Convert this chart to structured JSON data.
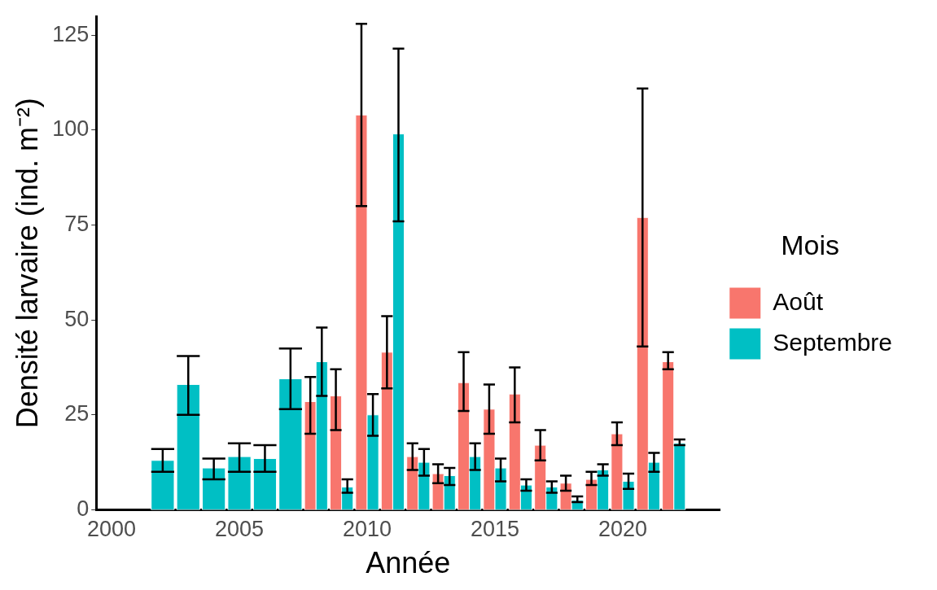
{
  "chart_data": {
    "type": "bar",
    "xlabel": "Année",
    "ylabel": "Densité larvaire (ind. m⁻²)",
    "legend_title": "Mois",
    "legend": "right",
    "grid": false,
    "xlim": [
      1999.4,
      2023.8
    ],
    "xticks": [
      2000,
      2005,
      2010,
      2015,
      2020
    ],
    "ylim": [
      0,
      130
    ],
    "yticks": [
      0,
      25,
      50,
      75,
      100,
      125
    ],
    "series": [
      {
        "name": "Août",
        "color": "#f8766d",
        "x": [
          2008,
          2009,
          2010,
          2011,
          2012,
          2013,
          2014,
          2015,
          2016,
          2017,
          2018,
          2019,
          2020,
          2021,
          2022
        ],
        "values": [
          28.5,
          30,
          104,
          41.5,
          14,
          9.5,
          33.5,
          26.5,
          30.5,
          17,
          7,
          8,
          20,
          77,
          39
        ],
        "errors": [
          [
            20,
            35
          ],
          [
            21,
            37
          ],
          [
            80,
            128
          ],
          [
            32,
            51
          ],
          [
            10.5,
            17.5
          ],
          [
            7,
            12
          ],
          [
            26,
            41.5
          ],
          [
            20,
            33
          ],
          [
            23,
            37.5
          ],
          [
            13,
            21
          ],
          [
            5,
            9
          ],
          [
            6.5,
            10
          ],
          [
            17,
            23
          ],
          [
            43,
            111
          ],
          [
            37,
            41.5
          ]
        ]
      },
      {
        "name": "Septembre",
        "color": "#00bfc4",
        "x": [
          2002,
          2003,
          2004,
          2005,
          2006,
          2007,
          2008,
          2009,
          2010,
          2011,
          2012,
          2013,
          2014,
          2015,
          2016,
          2017,
          2018,
          2019,
          2020,
          2021,
          2022
        ],
        "values": [
          13,
          33,
          11,
          14,
          13.5,
          34.5,
          39,
          6,
          25,
          99,
          12.5,
          9,
          14,
          11,
          6.5,
          6,
          2.5,
          10.5,
          7.5,
          12.5,
          17.5
        ],
        "errors": [
          [
            10,
            16
          ],
          [
            25,
            40.5
          ],
          [
            8,
            13.5
          ],
          [
            10,
            17.5
          ],
          [
            10,
            17
          ],
          [
            26.5,
            42.5
          ],
          [
            30,
            48
          ],
          [
            4.5,
            8
          ],
          [
            19.5,
            30.5
          ],
          [
            76,
            121.5
          ],
          [
            9,
            16
          ],
          [
            6.5,
            11
          ],
          [
            10.5,
            17.5
          ],
          [
            7.5,
            13.5
          ],
          [
            5,
            8
          ],
          [
            4.5,
            7.5
          ],
          [
            2,
            3.5
          ],
          [
            9,
            12
          ],
          [
            5.5,
            9.5
          ],
          [
            10,
            15
          ],
          [
            17,
            18.5
          ]
        ]
      }
    ]
  }
}
